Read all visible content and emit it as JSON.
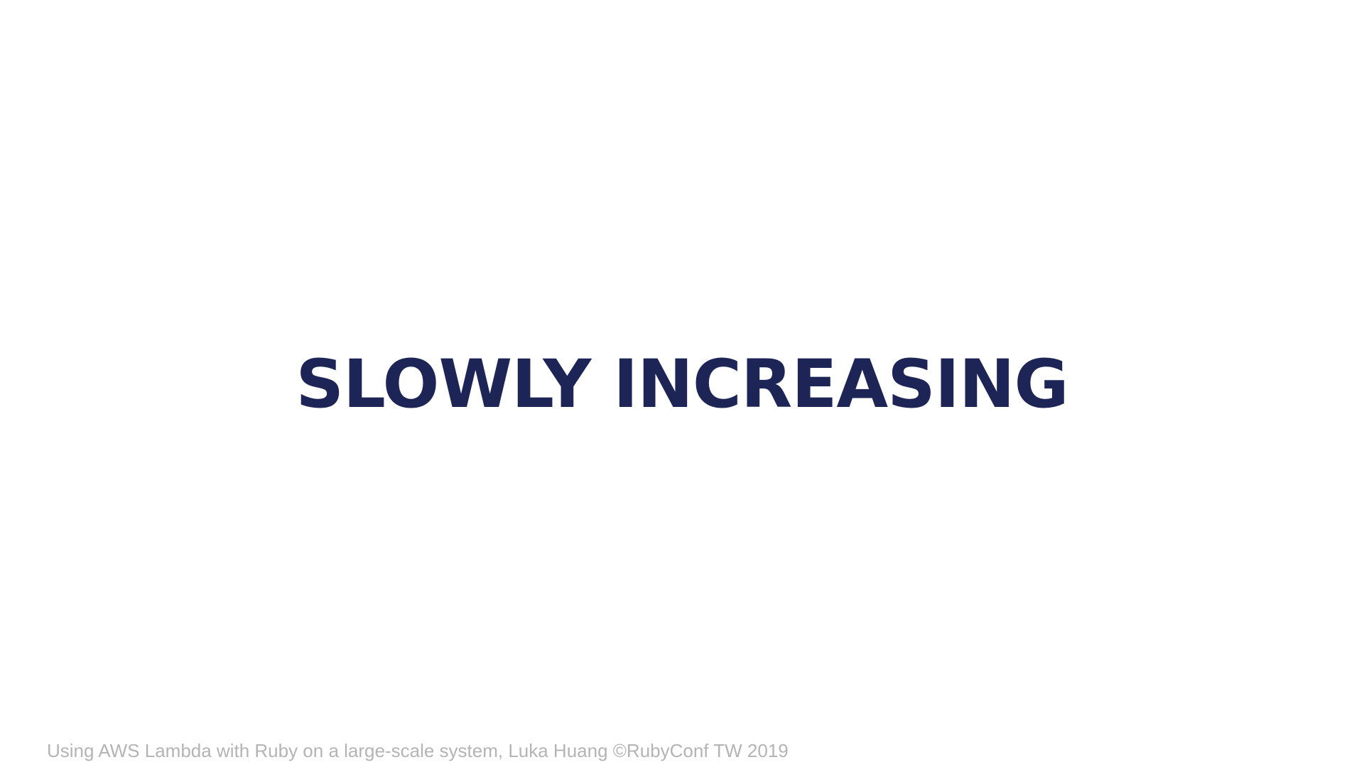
{
  "slide": {
    "title": "SLOWLY INCREASING",
    "footer": "Using AWS Lambda with Ruby on a large-scale system, Luka Huang ©RubyConf TW 2019"
  },
  "colors": {
    "background": "#ffffff",
    "title": "#1d2556",
    "footer": "#b4b4b4"
  }
}
